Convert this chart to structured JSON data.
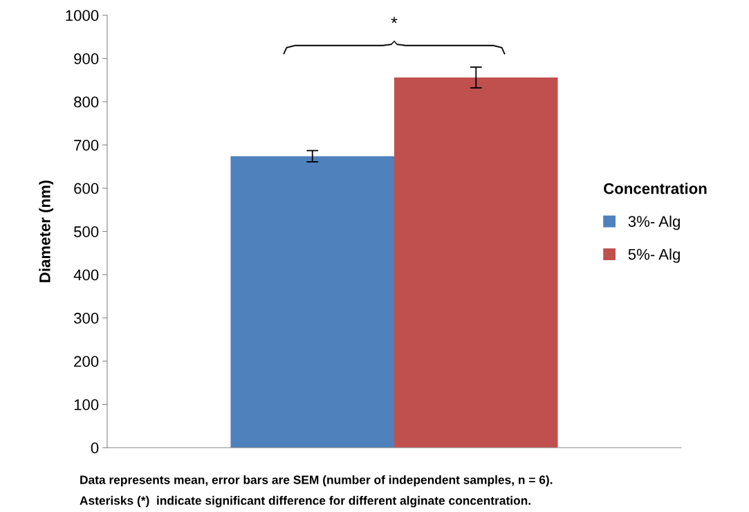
{
  "chart_data": {
    "type": "bar",
    "ylabel": "Diameter (nm)",
    "legend_title": "Concentration",
    "categories": [
      null
    ],
    "series": [
      {
        "name": "3%- Alg",
        "color": "#4f81bd",
        "values": [
          674
        ],
        "errors": [
          13
        ]
      },
      {
        "name": "5%- Alg",
        "color": "#c0504d",
        "values": [
          856
        ],
        "errors": [
          24
        ]
      }
    ],
    "ylim": [
      0,
      1000
    ],
    "yticks": [
      0,
      100,
      200,
      300,
      400,
      500,
      600,
      700,
      800,
      900,
      1000
    ],
    "grid": false,
    "legend": "right",
    "annotations": [
      "*",
      "Data represents mean, error bars are SEM (number of independent samples, n = 6).",
      "Asterisks (*)  indicate significant difference for different alginate concentration."
    ]
  }
}
